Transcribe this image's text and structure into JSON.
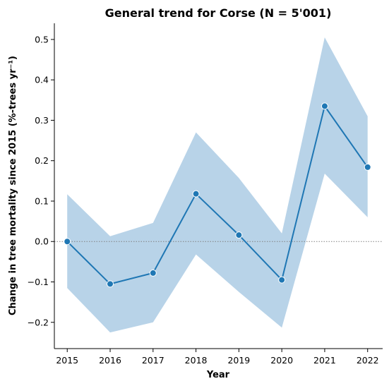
{
  "chart_data": {
    "type": "line",
    "title": "General trend for Corse  (N = 5'001)",
    "xlabel": "Year",
    "ylabel": "Change in tree mortality since 2015 (%-trees yr⁻¹)",
    "x": [
      2015,
      2016,
      2017,
      2018,
      2019,
      2020,
      2021,
      2022
    ],
    "x_tick_labels": [
      "2015",
      "2016",
      "2017",
      "2018",
      "2019",
      "2020",
      "2021",
      "2022"
    ],
    "y_ticks": [
      -0.2,
      -0.1,
      0.0,
      0.1,
      0.2,
      0.3,
      0.4,
      0.5
    ],
    "y_tick_labels": [
      "−0.2",
      "−0.1",
      "0.0",
      "0.1",
      "0.2",
      "0.3",
      "0.4",
      "0.5"
    ],
    "ylim": [
      -0.265,
      0.54
    ],
    "xlim": [
      2014.7,
      2022.35
    ],
    "series": [
      {
        "values": [
          0.0,
          -0.105,
          -0.078,
          0.118,
          0.016,
          -0.095,
          0.335,
          0.184
        ],
        "ci_lower": [
          -0.115,
          -0.225,
          -0.2,
          -0.032,
          -0.125,
          -0.213,
          0.168,
          0.06
        ],
        "ci_upper": [
          0.117,
          0.013,
          0.046,
          0.27,
          0.157,
          0.02,
          0.505,
          0.31
        ],
        "color": "#1f77b4",
        "band_color": "#a6c8e2"
      }
    ],
    "reference_line": {
      "y": 0.0,
      "style": "dotted",
      "color": "#808080"
    },
    "grid": false,
    "legend": "none"
  }
}
